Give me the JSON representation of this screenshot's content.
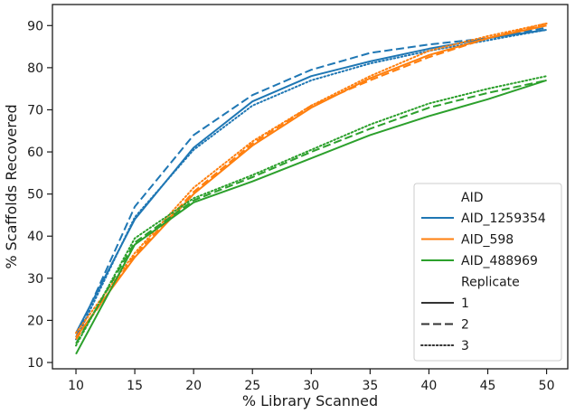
{
  "chart_data": {
    "type": "line",
    "title": "",
    "xlabel": "% Library Scanned",
    "ylabel": "% Scaffolds Recovered",
    "xlim": [
      8.0,
      51.8
    ],
    "ylim": [
      8.5,
      95.0
    ],
    "xticks": [
      10,
      15,
      20,
      25,
      30,
      35,
      40,
      45,
      50
    ],
    "yticks": [
      10,
      20,
      30,
      40,
      50,
      60,
      70,
      80,
      90
    ],
    "grid": false,
    "legend_placement": "lower-right",
    "legend": {
      "hue_title": "AID",
      "style_title": "Replicate",
      "hues": [
        {
          "name": "AID_1259354",
          "color": "#1f77b4"
        },
        {
          "name": "AID_598",
          "color": "#ff7f0e"
        },
        {
          "name": "AID_488969",
          "color": "#2ca02c"
        }
      ],
      "styles": [
        {
          "name": "1",
          "dash": "solid"
        },
        {
          "name": "2",
          "dash": "dashed"
        },
        {
          "name": "3",
          "dotted": true,
          "dash": "dotted"
        }
      ]
    },
    "x": [
      10,
      15,
      20,
      25,
      30,
      35,
      40,
      45,
      50
    ],
    "series": [
      {
        "aid": "AID_1259354",
        "replicate": "1",
        "color": "#1f77b4",
        "dash": "solid",
        "values": [
          17.0,
          44.0,
          61.0,
          72.0,
          78.0,
          81.5,
          84.5,
          87.0,
          89.0
        ]
      },
      {
        "aid": "AID_1259354",
        "replicate": "2",
        "color": "#1f77b4",
        "dash": "dashed",
        "values": [
          16.0,
          47.0,
          64.0,
          73.5,
          79.5,
          83.5,
          85.5,
          87.0,
          89.5
        ]
      },
      {
        "aid": "AID_1259354",
        "replicate": "3",
        "color": "#1f77b4",
        "dash": "dotted",
        "values": [
          15.5,
          44.5,
          60.5,
          71.0,
          77.0,
          81.0,
          84.0,
          86.5,
          89.0
        ]
      },
      {
        "aid": "AID_598",
        "replicate": "1",
        "color": "#ff7f0e",
        "dash": "solid",
        "values": [
          16.0,
          35.0,
          50.0,
          61.5,
          70.5,
          77.5,
          83.0,
          87.0,
          90.0
        ]
      },
      {
        "aid": "AID_598",
        "replicate": "2",
        "color": "#ff7f0e",
        "dash": "dashed",
        "values": [
          15.5,
          35.5,
          50.5,
          62.0,
          71.0,
          77.0,
          82.5,
          87.0,
          90.5
        ]
      },
      {
        "aid": "AID_598",
        "replicate": "3",
        "color": "#ff7f0e",
        "dash": "dotted",
        "values": [
          17.0,
          36.0,
          51.5,
          62.5,
          71.0,
          78.0,
          84.0,
          87.5,
          90.5
        ]
      },
      {
        "aid": "AID_488969",
        "replicate": "1",
        "color": "#2ca02c",
        "dash": "solid",
        "values": [
          12.0,
          38.0,
          48.0,
          53.0,
          58.5,
          64.0,
          68.5,
          72.5,
          77.0
        ]
      },
      {
        "aid": "AID_488969",
        "replicate": "2",
        "color": "#2ca02c",
        "dash": "dashed",
        "values": [
          14.5,
          38.5,
          48.5,
          54.0,
          60.0,
          65.5,
          70.5,
          74.0,
          77.0
        ]
      },
      {
        "aid": "AID_488969",
        "replicate": "3",
        "color": "#2ca02c",
        "dash": "dotted",
        "values": [
          14.0,
          39.5,
          49.0,
          54.5,
          60.5,
          66.5,
          71.5,
          75.0,
          78.0
        ]
      }
    ]
  }
}
